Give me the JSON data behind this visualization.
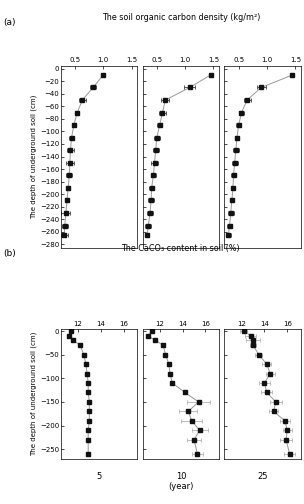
{
  "title_a": "The soil organic carbon density (kg/m²)",
  "title_b": "The CaCO₃ content in soil (%)",
  "ylabel_a": "The depth of underground soil (cm)",
  "ylabel_b": "The depth of underground soil (cm)",
  "xlabel": "(year)",
  "col_labels": [
    "5",
    "10",
    "25"
  ],
  "panel_a": {
    "xlim": [
      0.25,
      1.6
    ],
    "xticks": [
      0.5,
      1.0,
      1.5
    ],
    "ylim": [
      -285,
      5
    ],
    "yticks": [
      0,
      -20,
      -40,
      -60,
      -80,
      -100,
      -120,
      -140,
      -160,
      -180,
      -200,
      -220,
      -240,
      -260,
      -280
    ],
    "series": [
      {
        "depth": [
          -10,
          -30,
          -50,
          -70,
          -90,
          -110,
          -130,
          -150,
          -170,
          -190,
          -210,
          -230,
          -250,
          -265
        ],
        "x": [
          1.0,
          0.82,
          0.63,
          0.54,
          0.48,
          0.44,
          0.42,
          0.41,
          0.4,
          0.38,
          0.36,
          0.34,
          0.32,
          0.31
        ],
        "xerr": [
          0.0,
          0.05,
          0.06,
          0.04,
          0.04,
          0.04,
          0.06,
          0.07,
          0.05,
          0.04,
          0.04,
          0.08,
          0.05,
          0.06
        ]
      },
      {
        "depth": [
          -10,
          -30,
          -50,
          -70,
          -90,
          -110,
          -130,
          -150,
          -170,
          -190,
          -210,
          -230,
          -250,
          -265
        ],
        "x": [
          1.45,
          1.08,
          0.65,
          0.6,
          0.55,
          0.5,
          0.48,
          0.46,
          0.44,
          0.41,
          0.4,
          0.38,
          0.35,
          0.33
        ],
        "xerr": [
          0.0,
          0.1,
          0.07,
          0.06,
          0.05,
          0.05,
          0.05,
          0.06,
          0.04,
          0.04,
          0.05,
          0.05,
          0.05,
          0.04
        ]
      },
      {
        "depth": [
          -10,
          -30,
          -50,
          -70,
          -90,
          -110,
          -130,
          -150,
          -170,
          -190,
          -210,
          -230,
          -250,
          -265
        ],
        "x": [
          1.45,
          0.9,
          0.65,
          0.55,
          0.5,
          0.47,
          0.45,
          0.43,
          0.41,
          0.4,
          0.38,
          0.36,
          0.34,
          0.32
        ],
        "xerr": [
          0.0,
          0.08,
          0.06,
          0.05,
          0.04,
          0.04,
          0.05,
          0.05,
          0.05,
          0.04,
          0.04,
          0.05,
          0.04,
          0.04
        ]
      }
    ]
  },
  "panel_b": {
    "xlim": [
      10.5,
      17.2
    ],
    "xticks": [
      12,
      14,
      16
    ],
    "ylim": [
      -270,
      5
    ],
    "yticks": [
      0,
      -50,
      -100,
      -150,
      -200,
      -250
    ],
    "series": [
      {
        "depth": [
          0,
          -10,
          -20,
          -30,
          -50,
          -70,
          -90,
          -110,
          -130,
          -150,
          -170,
          -190,
          -210,
          -230,
          -260
        ],
        "x": [
          11.4,
          11.2,
          11.6,
          12.2,
          12.5,
          12.7,
          12.8,
          12.9,
          12.9,
          13.0,
          13.0,
          13.0,
          12.9,
          12.9,
          12.9
        ],
        "xerr": [
          0.0,
          0.0,
          0.0,
          0.0,
          0.0,
          0.0,
          0.0,
          0.0,
          0.0,
          0.0,
          0.0,
          0.0,
          0.0,
          0.0,
          0.0
        ]
      },
      {
        "depth": [
          0,
          -10,
          -20,
          -30,
          -50,
          -70,
          -90,
          -110,
          -130,
          -150,
          -170,
          -190,
          -210,
          -230,
          -260
        ],
        "x": [
          11.3,
          11.0,
          11.6,
          12.3,
          12.5,
          12.8,
          12.9,
          13.1,
          14.2,
          15.4,
          14.5,
          14.8,
          15.5,
          15.0,
          15.3
        ],
        "xerr": [
          0.0,
          0.0,
          0.0,
          0.0,
          0.0,
          0.0,
          0.0,
          0.1,
          0.12,
          1.0,
          0.8,
          0.9,
          0.7,
          0.6,
          0.5
        ]
      },
      {
        "depth": [
          0,
          -10,
          -20,
          -30,
          -50,
          -70,
          -90,
          -110,
          -130,
          -150,
          -170,
          -190,
          -210,
          -230,
          -260
        ],
        "x": [
          12.2,
          12.8,
          13.0,
          13.0,
          13.5,
          14.2,
          14.5,
          14.0,
          14.2,
          15.0,
          14.8,
          15.8,
          16.0,
          15.9,
          16.2
        ],
        "xerr": [
          0.3,
          0.5,
          0.6,
          0.3,
          0.3,
          0.4,
          0.4,
          0.5,
          0.5,
          0.5,
          0.4,
          0.4,
          0.4,
          0.5,
          0.5
        ]
      }
    ]
  },
  "line_color": "#999999",
  "marker_color": "#111111",
  "err_color_dark": "#555555",
  "err_color_light": "#bbbbbb",
  "bg_color": "#ffffff"
}
